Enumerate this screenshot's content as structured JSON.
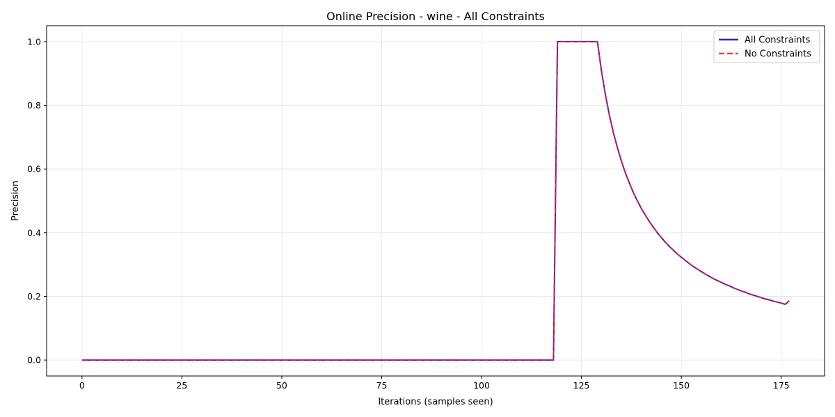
{
  "chart_data": {
    "type": "line",
    "title": "Online Precision - wine - All Constraints",
    "xlabel": "Iterations (samples seen)",
    "ylabel": "Precision",
    "xlim": [
      -8.85,
      185.85
    ],
    "ylim": [
      -0.05,
      1.05
    ],
    "xticks": [
      0,
      25,
      50,
      75,
      100,
      125,
      150,
      175
    ],
    "xtick_labels": [
      "0",
      "25",
      "50",
      "75",
      "100",
      "125",
      "150",
      "175"
    ],
    "yticks": [
      0.0,
      0.2,
      0.4,
      0.6,
      0.8,
      1.0
    ],
    "ytick_labels": [
      "0.0",
      "0.2",
      "0.4",
      "0.6",
      "0.8",
      "1.0"
    ],
    "grid": true,
    "legend_position": "top-right",
    "series": [
      {
        "name": "All Constraints",
        "color": "#0000dd",
        "style": "solid",
        "x": [
          0,
          118,
          119,
          120,
          121,
          122,
          123,
          124,
          125,
          126,
          127,
          128,
          129,
          130,
          131,
          132,
          133,
          134,
          135,
          136,
          137,
          138,
          139,
          140,
          141,
          142,
          143,
          144,
          145,
          146,
          147,
          148,
          149,
          150,
          151,
          152,
          153,
          154,
          155,
          156,
          157,
          158,
          159,
          160,
          161,
          162,
          163,
          164,
          165,
          166,
          167,
          168,
          169,
          170,
          171,
          172,
          173,
          174,
          175,
          176,
          177
        ],
        "y": [
          0,
          0,
          1,
          1,
          1,
          1,
          1,
          1,
          1,
          1,
          1,
          1,
          1,
          0.909,
          0.833,
          0.769,
          0.714,
          0.667,
          0.625,
          0.588,
          0.556,
          0.526,
          0.5,
          0.476,
          0.455,
          0.435,
          0.417,
          0.4,
          0.385,
          0.37,
          0.357,
          0.345,
          0.333,
          0.323,
          0.313,
          0.303,
          0.294,
          0.286,
          0.278,
          0.27,
          0.263,
          0.256,
          0.25,
          0.244,
          0.238,
          0.233,
          0.227,
          0.222,
          0.217,
          0.213,
          0.208,
          0.204,
          0.2,
          0.196,
          0.192,
          0.189,
          0.185,
          0.182,
          0.179,
          0.175,
          0.186
        ]
      },
      {
        "name": "No Constraints",
        "color": "#ee2222",
        "style": "dashed",
        "x": [
          0,
          118,
          119,
          120,
          121,
          122,
          123,
          124,
          125,
          126,
          127,
          128,
          129,
          130,
          131,
          132,
          133,
          134,
          135,
          136,
          137,
          138,
          139,
          140,
          141,
          142,
          143,
          144,
          145,
          146,
          147,
          148,
          149,
          150,
          151,
          152,
          153,
          154,
          155,
          156,
          157,
          158,
          159,
          160,
          161,
          162,
          163,
          164,
          165,
          166,
          167,
          168,
          169,
          170,
          171,
          172,
          173,
          174,
          175,
          176,
          177
        ],
        "y": [
          0,
          0,
          1,
          1,
          1,
          1,
          1,
          1,
          1,
          1,
          1,
          1,
          1,
          0.909,
          0.833,
          0.769,
          0.714,
          0.667,
          0.625,
          0.588,
          0.556,
          0.526,
          0.5,
          0.476,
          0.455,
          0.435,
          0.417,
          0.4,
          0.385,
          0.37,
          0.357,
          0.345,
          0.333,
          0.323,
          0.313,
          0.303,
          0.294,
          0.286,
          0.278,
          0.27,
          0.263,
          0.256,
          0.25,
          0.244,
          0.238,
          0.233,
          0.227,
          0.222,
          0.217,
          0.213,
          0.208,
          0.204,
          0.2,
          0.196,
          0.192,
          0.189,
          0.185,
          0.182,
          0.179,
          0.175,
          0.186
        ]
      }
    ]
  }
}
